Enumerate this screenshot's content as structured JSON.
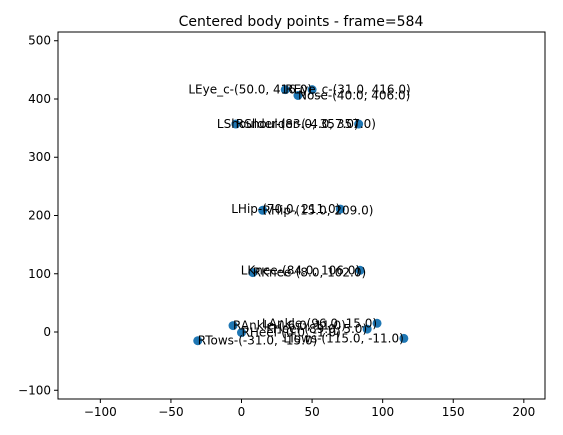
{
  "chart_data": {
    "type": "scatter",
    "title": "Centered body points - frame=584",
    "xlabel": "",
    "ylabel": "",
    "xlim": [
      -130,
      215
    ],
    "ylim": [
      -115,
      515
    ],
    "xticks": [
      -100,
      -50,
      0,
      50,
      100,
      150,
      200
    ],
    "yticks": [
      -100,
      0,
      100,
      200,
      300,
      400,
      500
    ],
    "grid": false,
    "point_color": "#1f77b4",
    "points": [
      {
        "name": "LEye_c",
        "x": 50.0,
        "y": 416.0
      },
      {
        "name": "REye_c",
        "x": 31.0,
        "y": 416.0
      },
      {
        "name": "Nose",
        "x": 40.0,
        "y": 406.0
      },
      {
        "name": "LShoulder",
        "x": 83.0,
        "y": 357.0
      },
      {
        "name": "RShoulder",
        "x": -4.0,
        "y": 357.0
      },
      {
        "name": "LHip",
        "x": 70.0,
        "y": 211.0
      },
      {
        "name": "RHip",
        "x": 15.0,
        "y": 209.0
      },
      {
        "name": "LKnee",
        "x": 84.0,
        "y": 106.0
      },
      {
        "name": "RKnee",
        "x": 8.0,
        "y": 102.0
      },
      {
        "name": "LAnkle",
        "x": 96.0,
        "y": 15.0
      },
      {
        "name": "RAnkle",
        "x": -6.0,
        "y": 11.0
      },
      {
        "name": "LHeel",
        "x": 89.0,
        "y": 5.0
      },
      {
        "name": "RHeel",
        "x": 0.0,
        "y": -1.0
      },
      {
        "name": "LTows",
        "x": 115.0,
        "y": -11.0
      },
      {
        "name": "RTows",
        "x": -31.0,
        "y": -15.0
      }
    ],
    "annotations": [
      {
        "text": "LEye_c-(50.0, 416.0)",
        "x": 50.0,
        "y": 416.0,
        "anchor": "end"
      },
      {
        "text": "REye_c-(31.0, 416.0)",
        "x": 31.0,
        "y": 416.0,
        "anchor": "start"
      },
      {
        "text": "Nose-(40.0, 406.0)",
        "x": 40.0,
        "y": 406.0,
        "anchor": "start"
      },
      {
        "text": "LShoulder-(83.0, 357.0)",
        "x": 83.0,
        "y": 357.0,
        "anchor": "end"
      },
      {
        "text": "RShoulder-(-4.0, 357.0)",
        "x": -4.0,
        "y": 357.0,
        "anchor": "start"
      },
      {
        "text": "LHip-(70.0, 211.0)",
        "x": 70.0,
        "y": 211.0,
        "anchor": "end"
      },
      {
        "text": "RHip-(15.0, 209.0)",
        "x": 15.0,
        "y": 209.0,
        "anchor": "start"
      },
      {
        "text": "LKnee-(84.0, 106.0)",
        "x": 84.0,
        "y": 106.0,
        "anchor": "end"
      },
      {
        "text": "RKnee-(8.0, 102.0)",
        "x": 8.0,
        "y": 102.0,
        "anchor": "start"
      },
      {
        "text": "LAnkle-(96.0, 15.0)",
        "x": 96.0,
        "y": 15.0,
        "anchor": "end"
      },
      {
        "text": "RAnkle-(-6.0, 11.0)",
        "x": -6.0,
        "y": 11.0,
        "anchor": "start"
      },
      {
        "text": "LHeel-(89.0, 5.0)",
        "x": 89.0,
        "y": 5.0,
        "anchor": "end"
      },
      {
        "text": "RHeel-(0.0, -1.0)",
        "x": 0.0,
        "y": -1.0,
        "anchor": "start"
      },
      {
        "text": "LTows-(115.0, -11.0)",
        "x": 115.0,
        "y": -11.0,
        "anchor": "end"
      },
      {
        "text": "RTows-(-31.0, -15.0)",
        "x": -31.0,
        "y": -15.0,
        "anchor": "start"
      }
    ]
  }
}
